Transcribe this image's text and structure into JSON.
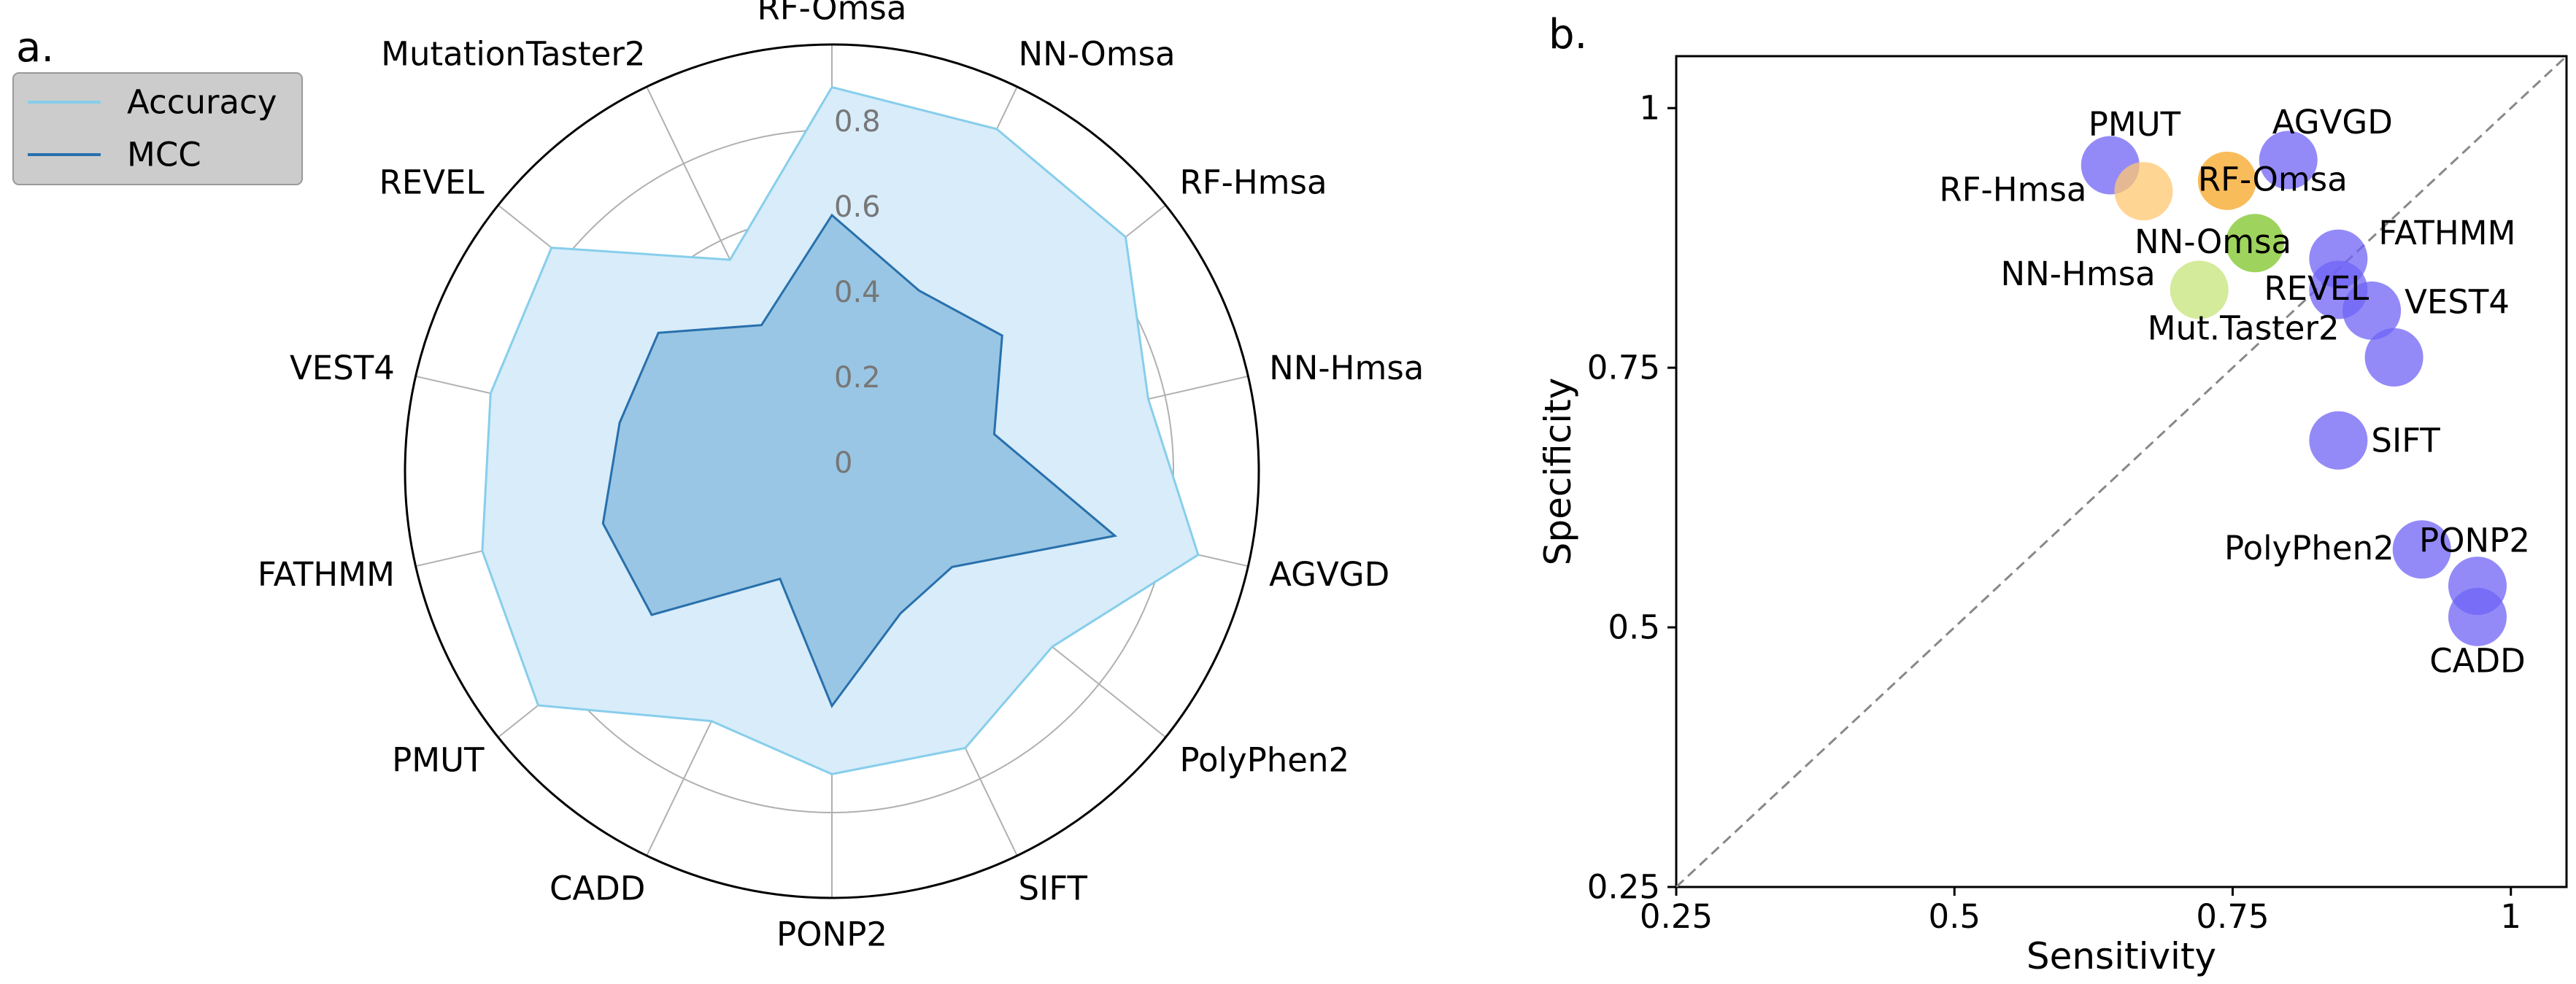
{
  "panels": {
    "a": "a.",
    "b": "b."
  },
  "chart_data": [
    {
      "type": "radar",
      "panel": "a.",
      "categories": [
        "RF-Omsa",
        "NN-Omsa",
        "RF-Hmsa",
        "NN-Hmsa",
        "AGVGD",
        "PolyPhen2",
        "SIFT",
        "PONP2",
        "CADD",
        "PMUT",
        "FATHMM",
        "VEST4",
        "REVEL",
        "MutationTaster2"
      ],
      "series": [
        {
          "name": "Accuracy",
          "values": [
            0.9,
            0.89,
            0.88,
            0.76,
            0.88,
            0.66,
            0.72,
            0.71,
            0.65,
            0.88,
            0.84,
            0.82,
            0.84,
            0.55
          ],
          "color": "#87ceeb",
          "fill": "#d8ecfa"
        },
        {
          "name": "MCC",
          "values": [
            0.6,
            0.47,
            0.51,
            0.39,
            0.68,
            0.36,
            0.37,
            0.55,
            0.28,
            0.54,
            0.55,
            0.51,
            0.52,
            0.38
          ],
          "color": "#2870ac",
          "fill": "#8ebfdf"
        }
      ],
      "radial_ticks": [
        "0",
        "0.2",
        "0.4",
        "0.6",
        "0.8"
      ],
      "rlim": [
        0,
        1
      ],
      "legend": {
        "entries": [
          "Accuracy",
          "MCC"
        ],
        "placement": "top-left"
      }
    },
    {
      "type": "scatter",
      "panel": "b.",
      "xlabel": "Sensitivity",
      "ylabel": "Specificity",
      "xlim": [
        0.25,
        1.05
      ],
      "ylim": [
        0.25,
        1.05
      ],
      "xticks": [
        "0.25",
        "0.5",
        "0.75",
        "1"
      ],
      "yticks": [
        "0.25",
        "0.5",
        "0.75",
        "1"
      ],
      "diagonal": true,
      "points": [
        {
          "label": "PMUT",
          "x": 0.64,
          "y": 0.945,
          "color": "#6f63f5"
        },
        {
          "label": "AGVGD",
          "x": 0.8,
          "y": 0.95,
          "color": "#6f63f5"
        },
        {
          "label": "RF-Hmsa",
          "x": 0.67,
          "y": 0.92,
          "color": "#ffc770"
        },
        {
          "label": "RF-Omsa",
          "x": 0.745,
          "y": 0.93,
          "color": "#f7a524"
        },
        {
          "label": "NN-Omsa",
          "x": 0.77,
          "y": 0.87,
          "color": "#7ec628"
        },
        {
          "label": "FATHMM",
          "x": 0.845,
          "y": 0.855,
          "color": "#6f63f5"
        },
        {
          "label": "NN-Hmsa",
          "x": 0.72,
          "y": 0.825,
          "color": "#c4e478"
        },
        {
          "label": "REVEL",
          "x": 0.845,
          "y": 0.825,
          "color": "#6f63f5"
        },
        {
          "label": "VEST4",
          "x": 0.875,
          "y": 0.805,
          "color": "#6f63f5"
        },
        {
          "label": "Mut.Taster2",
          "x": 0.895,
          "y": 0.76,
          "color": "#6f63f5"
        },
        {
          "label": "SIFT",
          "x": 0.845,
          "y": 0.68,
          "color": "#6f63f5"
        },
        {
          "label": "PolyPhen2",
          "x": 0.92,
          "y": 0.575,
          "color": "#6f63f5"
        },
        {
          "label": "PONP2",
          "x": 0.97,
          "y": 0.54,
          "color": "#6f63f5"
        },
        {
          "label": "CADD",
          "x": 0.97,
          "y": 0.51,
          "color": "#6f63f5"
        }
      ]
    }
  ]
}
